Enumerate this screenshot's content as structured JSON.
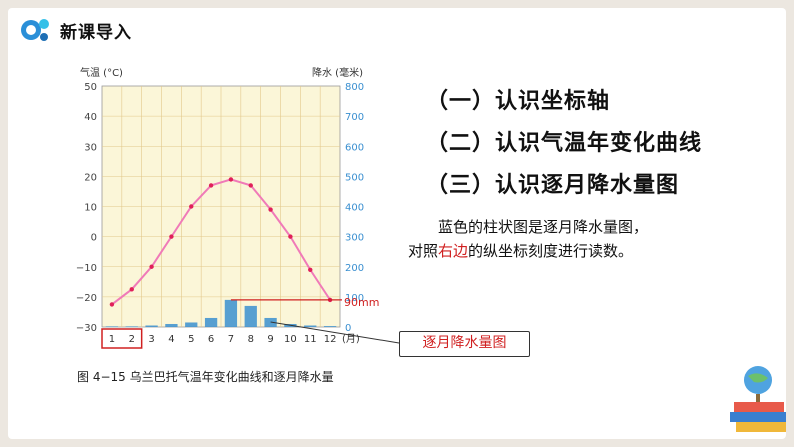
{
  "header": {
    "title": "新课导入"
  },
  "outline": [
    "（一）认识坐标轴",
    "（二）认识气温年变化曲线",
    "（三）认识逐月降水量图"
  ],
  "paragraph": {
    "part1": "蓝色的柱状图是逐月降水量图，",
    "part2": "对照",
    "highlight": "右边",
    "part3": "的纵坐标刻度进行读数。"
  },
  "callout_label": "逐月降水量图",
  "annotation_90": "90mm",
  "caption": "图 4−15    乌兰巴托气温年变化曲线和逐月降水量",
  "colors": {
    "temp_line": "#f07ab8",
    "temp_point": "#e0205a",
    "bars": "#3a8fd0",
    "highlight": "#d02020",
    "plot_bg": "#fbf6d8"
  },
  "chart_data": {
    "type": "bar+line",
    "left_axis_label": "气温 (°C)",
    "right_axis_label": "降水 (毫米)",
    "x": [
      "1",
      "2",
      "3",
      "4",
      "5",
      "6",
      "7",
      "8",
      "9",
      "10",
      "11",
      "12"
    ],
    "x_unit": "(月)",
    "left_ticks": [
      "50",
      "40",
      "30",
      "20",
      "10",
      "0",
      "−10",
      "−20",
      "−30"
    ],
    "right_ticks": [
      "800",
      "700",
      "600",
      "500",
      "400",
      "300",
      "200",
      "100",
      "0"
    ],
    "left_range": [
      -30,
      50
    ],
    "right_range": [
      0,
      800
    ],
    "series": [
      {
        "values": [
          -22.5,
          -17.5,
          -10,
          0,
          10,
          17,
          19,
          17,
          9,
          0,
          -11,
          -21
        ]
      },
      {
        "values": [
          2,
          2,
          5,
          10,
          15,
          30,
          90,
          70,
          30,
          10,
          5,
          3
        ]
      }
    ]
  }
}
